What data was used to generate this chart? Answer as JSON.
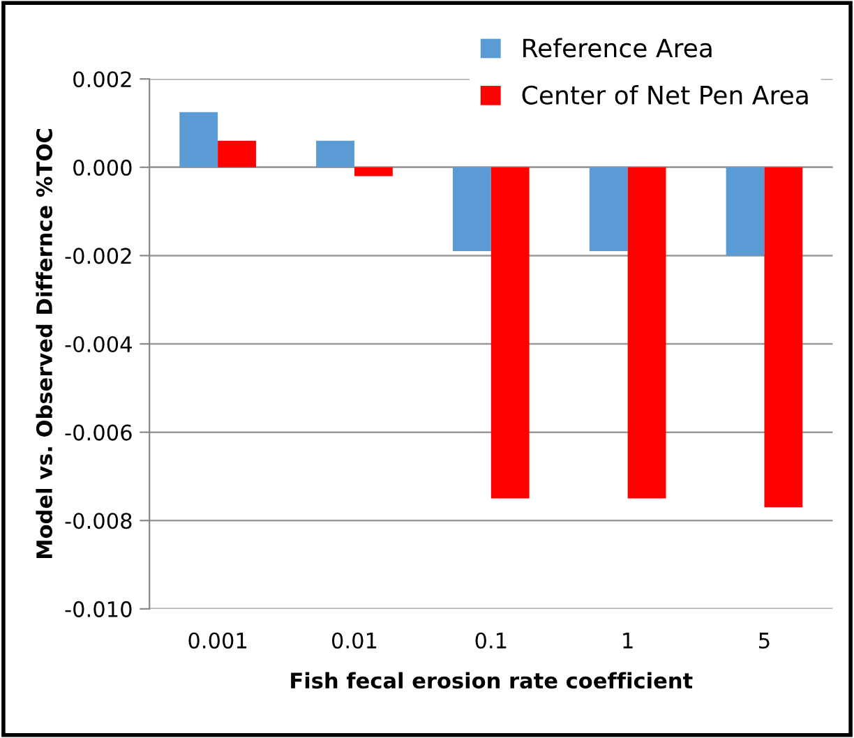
{
  "chart_data": {
    "type": "bar",
    "xlabel": "Fish fecal erosion rate coefficient",
    "ylabel": "Model vs. Observed Differnce %TOC",
    "categories": [
      "0.001",
      "0.01",
      "0.1",
      "1",
      "5"
    ],
    "series": [
      {
        "name": "Reference Area",
        "color": "#5b9bd5",
        "values": [
          0.00125,
          0.0006,
          -0.0019,
          -0.0019,
          -0.002
        ]
      },
      {
        "name": "Center of Net Pen Area",
        "color": "#ff0000",
        "values": [
          0.0006,
          -0.0002,
          -0.0075,
          -0.0075,
          -0.0077
        ]
      }
    ],
    "ylim": [
      -0.01,
      0.002
    ],
    "yticks": [
      {
        "value": -0.01,
        "label": "-0.010"
      },
      {
        "value": -0.008,
        "label": "-0.008"
      },
      {
        "value": -0.006,
        "label": "-0.006"
      },
      {
        "value": -0.004,
        "label": "-0.004"
      },
      {
        "value": -0.002,
        "label": "-0.002"
      },
      {
        "value": 0,
        "label": "0.000"
      },
      {
        "value": 0.002,
        "label": "0.002"
      }
    ],
    "grid": "y",
    "legend": "top right"
  }
}
